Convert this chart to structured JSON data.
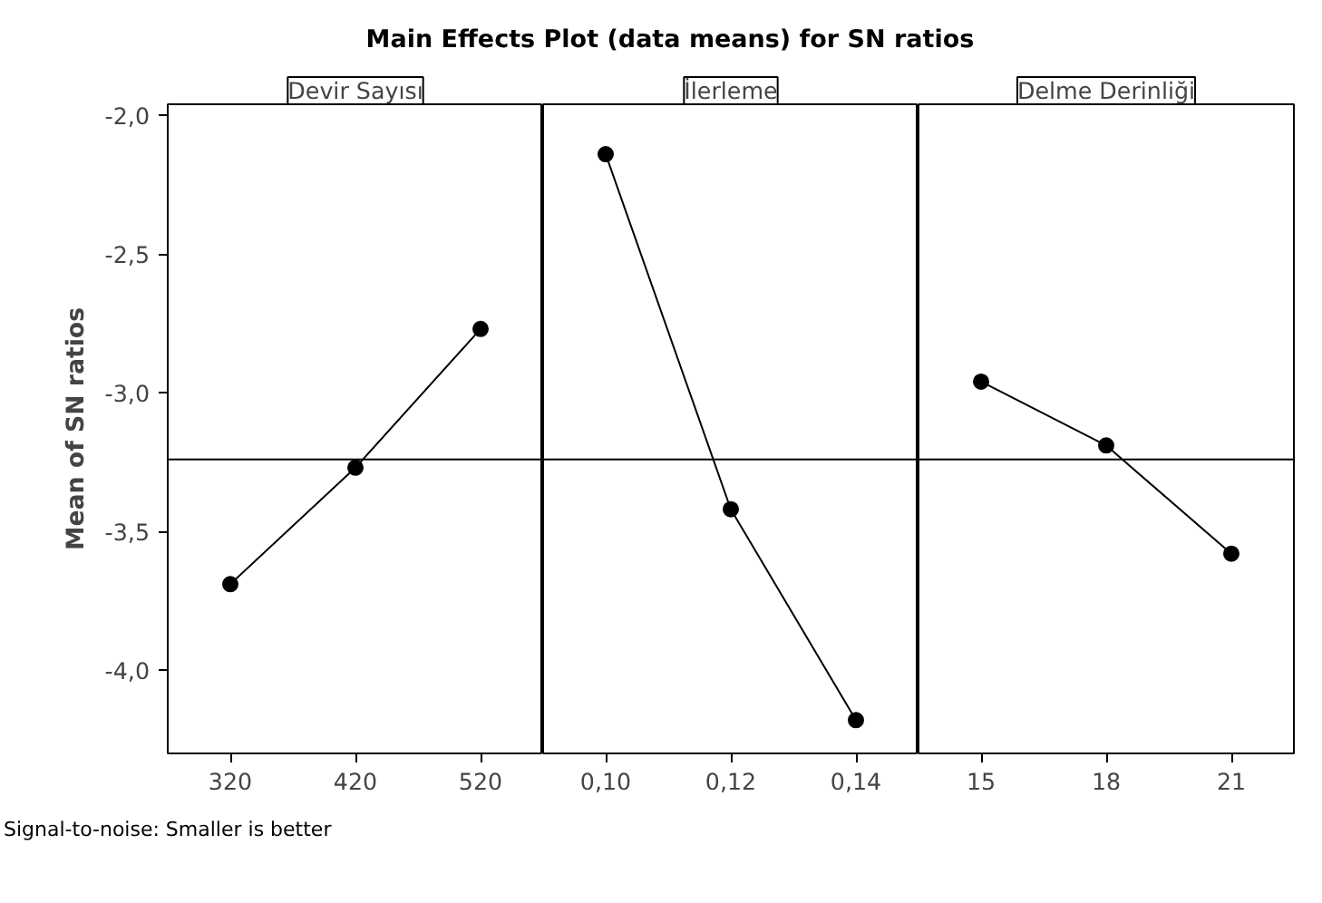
{
  "chart_data": [
    {
      "type": "line",
      "title": "Main Effects Plot (data means) for SN ratios",
      "subtitle": "Devir Sayısı",
      "ylabel": "Mean of SN ratios",
      "annotations": [
        "Signal-to-noise: Smaller is better"
      ],
      "categories": [
        "320",
        "420",
        "520"
      ],
      "values": [
        -3.69,
        -3.27,
        -2.77
      ],
      "color": "#000000",
      "marker": "circle",
      "line_style": "solid",
      "ylim": [
        -4.3,
        -1.96
      ],
      "yticks": [
        {
          "value": -2.0,
          "label": "-2,0"
        },
        {
          "value": -2.5,
          "label": "-2,5"
        },
        {
          "value": -3.0,
          "label": "-3,0"
        },
        {
          "value": -3.5,
          "label": "-3,5"
        },
        {
          "value": -4.0,
          "label": "-4,0"
        }
      ],
      "ref_lines": [
        {
          "axis": "y",
          "value": -3.24
        }
      ],
      "grid": false
    },
    {
      "type": "line",
      "subtitle": "İlerleme",
      "categories": [
        "0,10",
        "0,12",
        "0,14"
      ],
      "values": [
        -2.14,
        -3.42,
        -4.18
      ],
      "color": "#000000",
      "marker": "circle",
      "line_style": "solid",
      "ylim": [
        -4.3,
        -1.96
      ],
      "ref_lines": [
        {
          "axis": "y",
          "value": -3.24
        }
      ],
      "tick_labels": "x",
      "grid": false
    },
    {
      "type": "line",
      "subtitle": "Delme Derinliği",
      "categories": [
        "15",
        "18",
        "21"
      ],
      "values": [
        -2.96,
        -3.19,
        -3.58
      ],
      "color": "#000000",
      "marker": "circle",
      "line_style": "solid",
      "ylim": [
        -4.3,
        -1.96
      ],
      "ref_lines": [
        {
          "axis": "y",
          "value": -3.24
        }
      ],
      "tick_labels": "x",
      "grid": false
    }
  ]
}
